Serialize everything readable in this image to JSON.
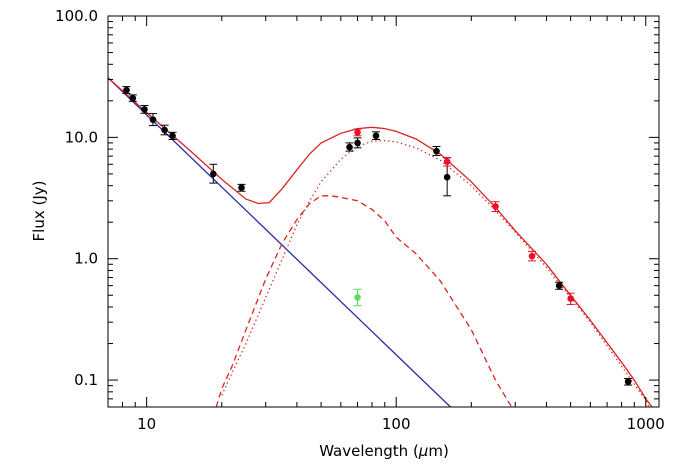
{
  "chart_data": {
    "type": "scatter",
    "xlabel": "Wavelength (μm)",
    "xlabel_parts": [
      "Wavelength (",
      "μ",
      "m)"
    ],
    "ylabel": "Flux (Jy)",
    "xscale": "log",
    "yscale": "log",
    "xlim": [
      7,
      1130
    ],
    "ylim": [
      0.06,
      100
    ],
    "x_ticks": [
      {
        "value": 10,
        "label": "10"
      },
      {
        "value": 100,
        "label": "100"
      },
      {
        "value": 1000,
        "label": "1000"
      }
    ],
    "y_ticks": [
      {
        "value": 0.1,
        "label": "0.1"
      },
      {
        "value": 1,
        "label": "1.0"
      },
      {
        "value": 10,
        "label": "10.0"
      },
      {
        "value": 100,
        "label": "100.0"
      }
    ],
    "grid": false,
    "colors": {
      "photosphere": "#2a2aa6",
      "model": "#dd2222",
      "black_points": "#000000",
      "red_points": "#e8102a",
      "green_points": "#55e055"
    },
    "series": [
      {
        "style": "line",
        "color": "#2a2aa6",
        "dash": "solid",
        "points": [
          [
            7,
            31
          ],
          [
            165,
            0.06
          ]
        ]
      },
      {
        "style": "line",
        "color": "#dd2222",
        "dash": "solid",
        "points": [
          [
            7,
            31
          ],
          [
            10,
            16
          ],
          [
            15,
            7.7
          ],
          [
            20,
            4.5
          ],
          [
            25,
            3.1
          ],
          [
            28,
            2.85
          ],
          [
            31,
            2.9
          ],
          [
            35,
            3.8
          ],
          [
            40,
            5.4
          ],
          [
            45,
            7.3
          ],
          [
            50,
            9.0
          ],
          [
            60,
            10.8
          ],
          [
            70,
            11.8
          ],
          [
            80,
            12.1
          ],
          [
            90,
            11.8
          ],
          [
            100,
            11.2
          ],
          [
            120,
            9.7
          ],
          [
            150,
            7.3
          ],
          [
            200,
            4.3
          ],
          [
            250,
            2.65
          ],
          [
            300,
            1.7
          ],
          [
            400,
            0.9
          ],
          [
            500,
            0.5
          ],
          [
            600,
            0.31
          ],
          [
            800,
            0.14
          ],
          [
            900,
            0.1
          ],
          [
            1000,
            0.07
          ],
          [
            1060,
            0.06
          ]
        ]
      },
      {
        "style": "line",
        "color": "#dd2222",
        "dash": "dotted",
        "points": [
          [
            20,
            0.075
          ],
          [
            22,
            0.115
          ],
          [
            25,
            0.2
          ],
          [
            30,
            0.48
          ],
          [
            35,
            1.0
          ],
          [
            40,
            1.9
          ],
          [
            45,
            3.0
          ],
          [
            50,
            4.3
          ],
          [
            60,
            6.6
          ],
          [
            70,
            8.4
          ],
          [
            80,
            9.3
          ],
          [
            90,
            9.4
          ],
          [
            100,
            9.2
          ],
          [
            120,
            8.2
          ],
          [
            150,
            6.5
          ],
          [
            200,
            4.0
          ],
          [
            250,
            2.5
          ],
          [
            300,
            1.65
          ],
          [
            400,
            0.85
          ],
          [
            500,
            0.48
          ],
          [
            600,
            0.3
          ],
          [
            800,
            0.13
          ],
          [
            1000,
            0.068
          ],
          [
            1030,
            0.06
          ]
        ]
      },
      {
        "style": "line",
        "color": "#dd2222",
        "dash": "dashed",
        "points": [
          [
            19,
            0.06
          ],
          [
            20,
            0.085
          ],
          [
            22,
            0.13
          ],
          [
            25,
            0.26
          ],
          [
            30,
            0.68
          ],
          [
            35,
            1.35
          ],
          [
            40,
            2.1
          ],
          [
            45,
            2.85
          ],
          [
            50,
            3.3
          ],
          [
            55,
            3.3
          ],
          [
            60,
            3.2
          ],
          [
            70,
            3.0
          ],
          [
            80,
            2.55
          ],
          [
            90,
            2.05
          ],
          [
            100,
            1.5
          ],
          [
            120,
            1.1
          ],
          [
            150,
            0.66
          ],
          [
            200,
            0.26
          ],
          [
            250,
            0.1
          ],
          [
            290,
            0.06
          ]
        ]
      },
      {
        "style": "points",
        "color": "#000000",
        "points": [
          {
            "x": 8.3,
            "y": 24.5,
            "lo": 23.0,
            "hi": 26.2
          },
          {
            "x": 8.8,
            "y": 21.0,
            "lo": 19.8,
            "hi": 22.4
          },
          {
            "x": 9.8,
            "y": 17.0,
            "lo": 15.8,
            "hi": 18.3
          },
          {
            "x": 10.6,
            "y": 14.0,
            "lo": 12.5,
            "hi": 15.7
          },
          {
            "x": 11.8,
            "y": 11.5,
            "lo": 10.5,
            "hi": 12.6
          },
          {
            "x": 12.7,
            "y": 10.3,
            "lo": 9.6,
            "hi": 11.0
          },
          {
            "x": 18.5,
            "y": 5.0,
            "lo": 4.2,
            "hi": 6.0
          },
          {
            "x": 24.0,
            "y": 3.85,
            "lo": 3.6,
            "hi": 4.1
          },
          {
            "x": 65.0,
            "y": 8.3,
            "lo": 7.7,
            "hi": 9.0
          },
          {
            "x": 70.0,
            "y": 9.0,
            "lo": 8.2,
            "hi": 9.9
          },
          {
            "x": 83.0,
            "y": 10.3,
            "lo": 9.6,
            "hi": 11.1
          },
          {
            "x": 145.0,
            "y": 7.7,
            "lo": 7.1,
            "hi": 8.4
          },
          {
            "x": 160.0,
            "y": 4.7,
            "lo": 3.3,
            "hi": 6.8
          },
          {
            "x": 450.0,
            "y": 0.6,
            "lo": 0.56,
            "hi": 0.64
          },
          {
            "x": 850.0,
            "y": 0.097,
            "lo": 0.091,
            "hi": 0.103
          }
        ]
      },
      {
        "style": "points",
        "color": "#e8102a",
        "points": [
          {
            "x": 70.0,
            "y": 11.0,
            "lo": 10.3,
            "hi": 11.7
          },
          {
            "x": 160.0,
            "y": 6.3,
            "lo": 5.8,
            "hi": 6.8
          },
          {
            "x": 250.0,
            "y": 2.7,
            "lo": 2.45,
            "hi": 2.95
          },
          {
            "x": 350.0,
            "y": 1.05,
            "lo": 0.96,
            "hi": 1.15
          },
          {
            "x": 500.0,
            "y": 0.47,
            "lo": 0.42,
            "hi": 0.52
          }
        ]
      },
      {
        "style": "points",
        "color": "#55e055",
        "points": [
          {
            "x": 70.0,
            "y": 0.48,
            "lo": 0.41,
            "hi": 0.56
          }
        ]
      }
    ]
  }
}
